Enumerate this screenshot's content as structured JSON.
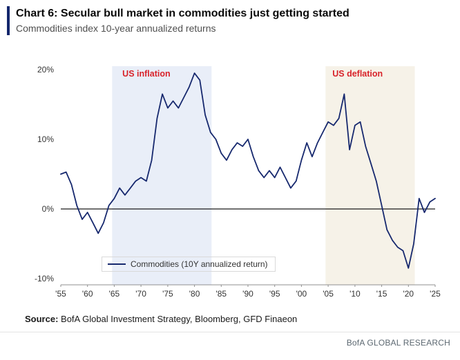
{
  "header": {
    "title": "Chart 6: Secular bull market in commodities just getting started",
    "subtitle": "Commodities index 10-year annualized returns"
  },
  "legend": {
    "label": "Commodities (10Y annualized return)"
  },
  "source": {
    "prefix": "Source:",
    "text": " BofA Global Investment Strategy, Bloomberg, GFD Finaeon"
  },
  "footer": {
    "brand": "BofA GLOBAL RESEARCH"
  },
  "colors": {
    "accent_navy": "#13266b",
    "line_navy": "#16286e",
    "annotation_red": "#d8232a",
    "inflation_shade": "#e9eef8",
    "deflation_shade": "#f6f2e8"
  },
  "chart_data": {
    "type": "line",
    "title": "Commodities index 10-year annualized returns",
    "xlabel": "",
    "ylabel": "",
    "xlim": [
      1955,
      2025
    ],
    "ylim": [
      -10,
      20
    ],
    "yticks": [
      20,
      10,
      0,
      -10
    ],
    "ytick_labels": [
      "20%",
      "10%",
      "0%",
      "-10%"
    ],
    "xticks": [
      1955,
      1960,
      1965,
      1970,
      1975,
      1980,
      1985,
      1990,
      1995,
      2000,
      2005,
      2010,
      2015,
      2020,
      2025
    ],
    "xtick_labels": [
      "'55",
      "'60",
      "'65",
      "'70",
      "'75",
      "'80",
      "'85",
      "'90",
      "'95",
      "'00",
      "'05",
      "'10",
      "'15",
      "'20",
      "'25"
    ],
    "grid": false,
    "legend_position": "bottom-left-inside",
    "annotation_color": "#d8232a",
    "annotations": [
      {
        "text": "US inflation",
        "x": 1971,
        "y": 19
      },
      {
        "text": "US deflation",
        "x": 2010.5,
        "y": 19
      }
    ],
    "regions": [
      {
        "label": "US inflation",
        "x0": 1964.6,
        "x1": 1983.2,
        "color": "#e9eef8"
      },
      {
        "label": "US deflation",
        "x0": 2004.5,
        "x1": 2021.2,
        "color": "#f6f2e8"
      }
    ],
    "series": [
      {
        "name": "Commodities (10Y annualized return)",
        "color": "#16286e",
        "x": [
          1955,
          1956,
          1957,
          1958,
          1959,
          1960,
          1961,
          1962,
          1963,
          1964,
          1965,
          1966,
          1967,
          1968,
          1969,
          1970,
          1971,
          1972,
          1973,
          1974,
          1975,
          1976,
          1977,
          1978,
          1979,
          1980,
          1981,
          1982,
          1983,
          1984,
          1985,
          1986,
          1987,
          1988,
          1989,
          1990,
          1991,
          1992,
          1993,
          1994,
          1995,
          1996,
          1997,
          1998,
          1999,
          2000,
          2001,
          2002,
          2003,
          2004,
          2005,
          2006,
          2007,
          2008,
          2009,
          2010,
          2011,
          2012,
          2013,
          2014,
          2015,
          2016,
          2017,
          2018,
          2019,
          2020,
          2021,
          2022,
          2023,
          2024,
          2025
        ],
        "y": [
          5.0,
          5.3,
          3.5,
          0.5,
          -1.5,
          -0.5,
          -2.0,
          -3.5,
          -2.0,
          0.5,
          1.5,
          3.0,
          2.0,
          3.0,
          4.0,
          4.5,
          4.0,
          7.0,
          13.0,
          16.5,
          14.5,
          15.5,
          14.5,
          16.0,
          17.5,
          19.5,
          18.5,
          13.5,
          11.0,
          10.0,
          8.0,
          7.0,
          8.5,
          9.5,
          9.0,
          10.0,
          7.5,
          5.5,
          4.5,
          5.5,
          4.5,
          6.0,
          4.5,
          3.0,
          4.0,
          7.0,
          9.5,
          7.5,
          9.5,
          11.0,
          12.5,
          12.0,
          13.0,
          16.5,
          8.5,
          12.0,
          12.5,
          9.0,
          6.5,
          4.0,
          0.5,
          -3.0,
          -4.5,
          -5.5,
          -6.0,
          -8.5,
          -5.0,
          1.5,
          -0.5,
          1.0,
          1.5
        ]
      }
    ]
  }
}
